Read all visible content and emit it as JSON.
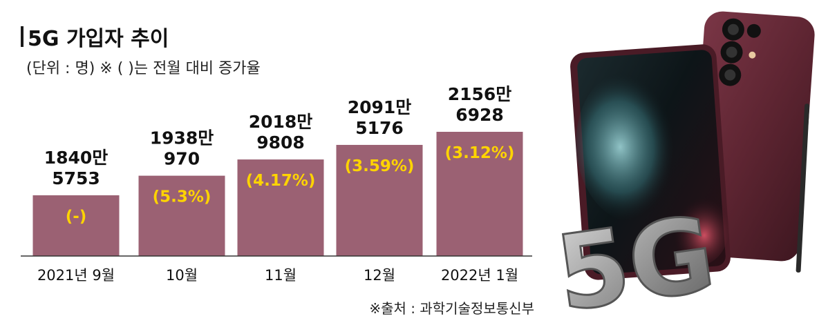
{
  "chart_data": {
    "type": "bar",
    "title": "5G 가입자 추이",
    "subtitle": "(단위 : 명)  ※ (  )는 전월 대비 증가율",
    "categories": [
      "2021년 9월",
      "10월",
      "11월",
      "12월",
      "2022년 1월"
    ],
    "values": [
      18405753,
      19380970,
      20189808,
      20915176,
      21566928
    ],
    "value_labels": [
      [
        "1840만",
        "5753"
      ],
      [
        "1938만",
        "970"
      ],
      [
        "2018만",
        "9808"
      ],
      [
        "2091만",
        "5176"
      ],
      [
        "2156만",
        "6928"
      ]
    ],
    "growth_labels": [
      "(-)",
      "(5.3%)",
      "(4.17%)",
      "(3.59%)",
      "(3.12%)"
    ],
    "source": "※출처 : 과학기술정보통신부",
    "colors": {
      "bar": "#9b6173",
      "growth_text": "#ffd400",
      "axis": "#333333"
    }
  },
  "image": {
    "phone_model_icon": "smartphone-icon",
    "badge_text": "5G"
  }
}
